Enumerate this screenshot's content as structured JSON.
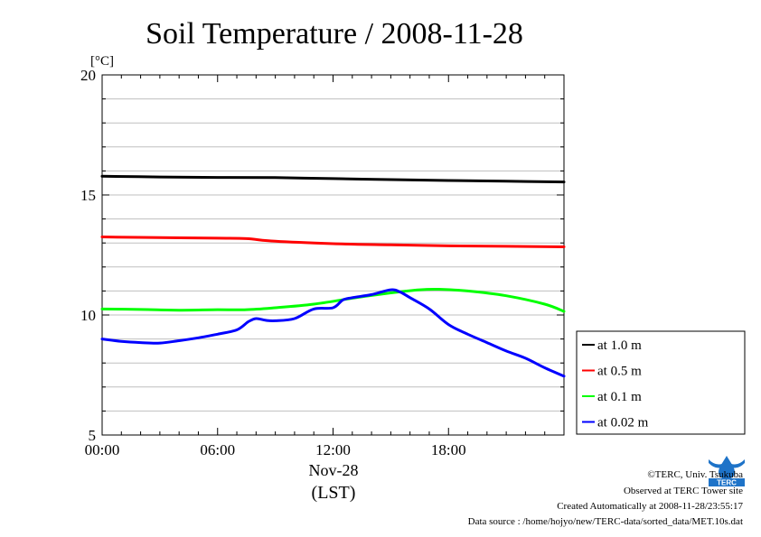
{
  "chart_data": {
    "type": "line",
    "title": "Soil Temperature / 2008-11-28",
    "unit_label": "[°C]",
    "xlabel_date": "Nov-28",
    "xlabel": "(LST)",
    "x_tick_labels": [
      "00:00",
      "06:00",
      "12:00",
      "18:00"
    ],
    "x_ticks_hours": [
      0,
      6,
      12,
      18
    ],
    "xlim_hours": [
      0,
      24
    ],
    "y_tick_labels": [
      "5",
      "10",
      "15",
      "20"
    ],
    "y_ticks": [
      5,
      10,
      15,
      20
    ],
    "ylim": [
      5,
      20
    ],
    "grid": true,
    "legend_position": "right",
    "series": [
      {
        "name": "at 1.0 m",
        "color": "#000000",
        "points": [
          [
            0,
            15.78
          ],
          [
            3,
            15.75
          ],
          [
            6,
            15.73
          ],
          [
            9,
            15.72
          ],
          [
            12,
            15.68
          ],
          [
            15,
            15.64
          ],
          [
            18,
            15.6
          ],
          [
            21,
            15.57
          ],
          [
            24,
            15.54
          ]
        ]
      },
      {
        "name": "at 0.5 m",
        "color": "#ff0000",
        "points": [
          [
            0,
            13.25
          ],
          [
            3,
            13.22
          ],
          [
            6,
            13.2
          ],
          [
            7.5,
            13.18
          ],
          [
            9,
            13.07
          ],
          [
            12,
            12.97
          ],
          [
            15,
            12.92
          ],
          [
            18,
            12.88
          ],
          [
            21,
            12.86
          ],
          [
            24,
            12.84
          ]
        ]
      },
      {
        "name": "at 0.1 m",
        "color": "#00ff00",
        "points": [
          [
            0,
            10.25
          ],
          [
            2,
            10.23
          ],
          [
            4,
            10.2
          ],
          [
            6,
            10.22
          ],
          [
            7.5,
            10.22
          ],
          [
            9,
            10.3
          ],
          [
            11,
            10.45
          ],
          [
            13,
            10.7
          ],
          [
            15,
            10.92
          ],
          [
            16.5,
            11.05
          ],
          [
            17.5,
            11.07
          ],
          [
            19,
            11.0
          ],
          [
            21,
            10.8
          ],
          [
            23,
            10.45
          ],
          [
            24,
            10.15
          ]
        ]
      },
      {
        "name": "at 0.02 m",
        "color": "#0000ff",
        "points": [
          [
            0,
            9.0
          ],
          [
            1,
            8.9
          ],
          [
            2,
            8.85
          ],
          [
            3,
            8.83
          ],
          [
            4,
            8.93
          ],
          [
            5,
            9.05
          ],
          [
            6,
            9.2
          ],
          [
            7,
            9.38
          ],
          [
            7.6,
            9.72
          ],
          [
            8,
            9.85
          ],
          [
            8.5,
            9.78
          ],
          [
            9,
            9.76
          ],
          [
            10,
            9.85
          ],
          [
            11,
            10.25
          ],
          [
            12,
            10.3
          ],
          [
            12.5,
            10.62
          ],
          [
            13,
            10.72
          ],
          [
            14,
            10.85
          ],
          [
            15,
            11.05
          ],
          [
            15.5,
            10.95
          ],
          [
            16,
            10.72
          ],
          [
            17,
            10.25
          ],
          [
            18,
            9.6
          ],
          [
            19,
            9.2
          ],
          [
            20,
            8.85
          ],
          [
            21,
            8.5
          ],
          [
            22,
            8.2
          ],
          [
            23,
            7.8
          ],
          [
            24,
            7.45
          ]
        ]
      }
    ]
  },
  "footer": {
    "copyright": "©TERC, Univ. Tsukuba",
    "observed": "Observed at TERC Tower site",
    "created": "Created Automatically at 2008-11-28/23:55:17",
    "source": "Data source : /home/hojyo/new/TERC-data/sorted_data/MET.10s.dat"
  },
  "logo": {
    "text": "TERC",
    "color": "#1e73c8"
  }
}
